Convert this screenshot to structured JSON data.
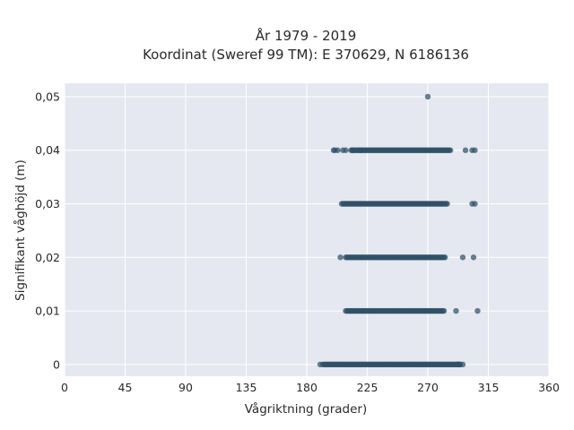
{
  "chart_data": {
    "type": "scatter",
    "title_line1": "År 1979 - 2019",
    "title_line2": "Koordinat (Sweref 99 TM): E 370629, N 6186136",
    "xlabel": "Vågriktning (grader)",
    "ylabel": "Signifikant våghöjd (m)",
    "xlim": [
      0,
      360
    ],
    "ylim": [
      -0.0022,
      0.0525
    ],
    "xticks": [
      0,
      45,
      90,
      135,
      180,
      225,
      270,
      315,
      360
    ],
    "xtick_labels": [
      "0",
      "45",
      "90",
      "135",
      "180",
      "225",
      "270",
      "315",
      "360"
    ],
    "yticks": [
      0,
      0.01,
      0.02,
      0.03,
      0.04,
      0.05
    ],
    "ytick_labels": [
      "0",
      "0,01",
      "0,02",
      "0,03",
      "0,04",
      "0,05"
    ],
    "grid": true,
    "background": "#e5e8f0",
    "marker_color": "#2f5066",
    "bands": [
      {
        "y": 0.0,
        "x_dense": [
          192,
          294
        ],
        "x_sparse": [
          190,
          293,
          294,
          296,
          292
        ]
      },
      {
        "y": 0.01,
        "x_dense": [
          210,
          282
        ],
        "x_sparse": [
          209,
          291,
          307
        ]
      },
      {
        "y": 0.02,
        "x_dense": [
          209,
          283
        ],
        "x_sparse": [
          205,
          296,
          304
        ]
      },
      {
        "y": 0.03,
        "x_dense": [
          207,
          285
        ],
        "x_sparse": [
          206,
          303,
          305
        ]
      },
      {
        "y": 0.04,
        "x_dense": [
          213,
          287
        ],
        "x_sparse": [
          200,
          201,
          203,
          207,
          209,
          214,
          220,
          298,
          303,
          305
        ]
      }
    ],
    "outliers": [
      {
        "x": 270,
        "y": 0.05
      }
    ]
  }
}
